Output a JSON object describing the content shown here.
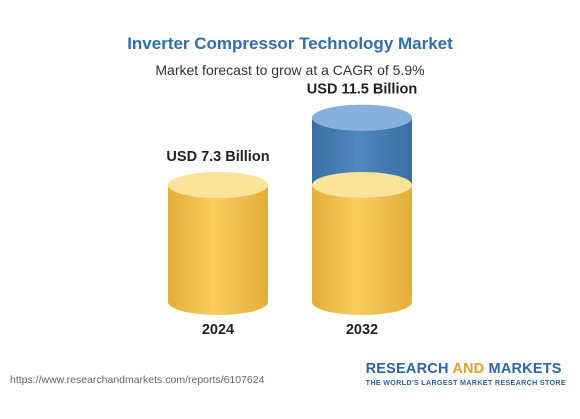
{
  "chart_data": {
    "type": "bar",
    "title": "Inverter Compressor Technology Market",
    "subtitle": "Market forecast to grow at a CAGR of 5.9%",
    "categories": [
      "2024",
      "2032"
    ],
    "values": [
      7.3,
      11.5
    ],
    "value_labels": [
      "USD 7.3 Billion",
      "USD 11.5 Billion"
    ],
    "units": "USD Billion",
    "colors": {
      "base": "#f7cd5c",
      "base_dark": "#e3ae3a",
      "base_top": "#fbe39a",
      "growth": "#4f87bf",
      "growth_dark": "#3b6fa3",
      "growth_top": "#86b1dc",
      "title": "#2f6fad"
    }
  },
  "footer": {
    "url": "https://www.researchandmarkets.com/reports/6107624",
    "brand_part1": "RESEARCH ",
    "brand_part2": "AND",
    "brand_part3": " MARKETS",
    "brand_tagline": "THE WORLD'S LARGEST MARKET RESEARCH STORE"
  }
}
